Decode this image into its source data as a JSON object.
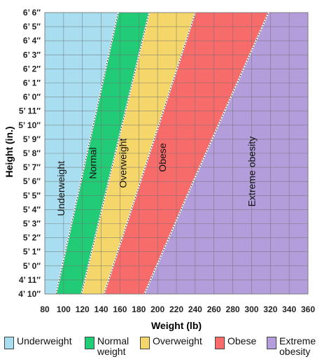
{
  "chart_data": {
    "type": "area",
    "xlabel": "Weight (lb)",
    "ylabel": "Height (in.)",
    "xlim": [
      80,
      360
    ],
    "x_ticks": [
      80,
      100,
      120,
      140,
      160,
      180,
      200,
      220,
      240,
      260,
      280,
      300,
      320,
      340,
      360
    ],
    "y_ticks": [
      "4’ 10″",
      "4’ 11″",
      "5’ 0″",
      "5’ 1″",
      "5’ 2″",
      "5’ 3″",
      "5’ 4″",
      "5’ 5″",
      "5’ 6″",
      "5’ 7″",
      "5’ 8″",
      "5’ 9″",
      "5’ 10″",
      "5’ 11″",
      "6’ 0″",
      "6’ 1″",
      "6’ 2″",
      "6’ 3″",
      "6’ 4″",
      "6’ 5″",
      "6’ 6″"
    ],
    "height_inches": [
      58,
      78
    ],
    "grid": true,
    "boundaries": [
      {
        "between": "Underweight/Normal",
        "points": [
          [
            92,
            58
          ],
          [
            158,
            78
          ]
        ]
      },
      {
        "between": "Normal/Overweight",
        "points": [
          [
            119,
            58
          ],
          [
            191,
            78
          ]
        ]
      },
      {
        "between": "Overweight/Obese",
        "points": [
          [
            143,
            58
          ],
          [
            240,
            78
          ]
        ]
      },
      {
        "between": "Obese/Extreme obesity",
        "points": [
          [
            186,
            58
          ],
          [
            238,
            66
          ],
          [
            318,
            78
          ]
        ]
      }
    ],
    "zones": [
      {
        "name": "Underweight",
        "color": "#a9def0",
        "label_at": [
          98,
          65.5
        ]
      },
      {
        "name": "Normal",
        "color": "#22cc77",
        "label_at": [
          132,
          67.3
        ]
      },
      {
        "name": "Overweight",
        "color": "#f5d66b",
        "label_at": [
          164,
          67.3
        ]
      },
      {
        "name": "Obese",
        "color": "#f86b6b",
        "label_at": [
          206,
          67.7
        ]
      },
      {
        "name": "Extreme obesity",
        "color": "#b39ddb",
        "label_at": [
          301,
          66.7
        ]
      }
    ],
    "legend": {
      "position": "bottom",
      "items": [
        {
          "line1": "Underweight",
          "line2": "",
          "color": "#a9def0"
        },
        {
          "line1": "Normal",
          "line2": "weight",
          "color": "#22cc77"
        },
        {
          "line1": "Overweight",
          "line2": "",
          "color": "#f5d66b"
        },
        {
          "line1": "Obese",
          "line2": "",
          "color": "#f86b6b"
        },
        {
          "line1": "Extreme",
          "line2": "obesity",
          "color": "#b39ddb"
        }
      ]
    }
  }
}
